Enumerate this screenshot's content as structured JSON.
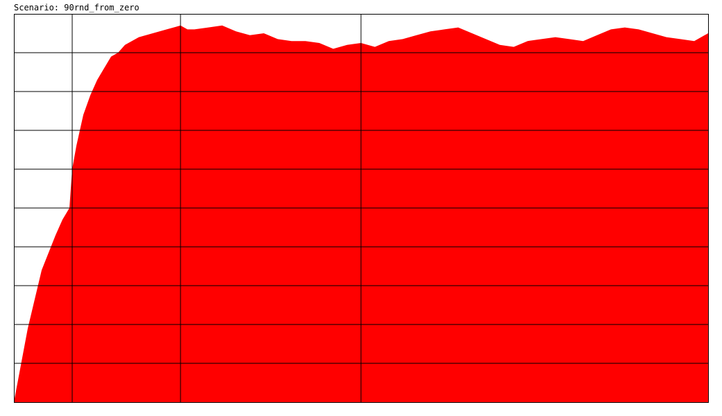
{
  "header": {
    "title": "Scenario: 90rnd_from_zero"
  },
  "chart_data": {
    "type": "area",
    "title": "Scenario: 90rnd_from_zero",
    "xlabel": "",
    "ylabel": "",
    "xlim": [
      0,
      1000
    ],
    "ylim": [
      0,
      1
    ],
    "grid": true,
    "y_gridlines": [
      0.1,
      0.2,
      0.3,
      0.4,
      0.5,
      0.6,
      0.7,
      0.8,
      0.9
    ],
    "x_gridlines": [
      84,
      240,
      500
    ],
    "fill_color": "#ff0000",
    "series": [
      {
        "x": [
          0,
          20,
          40,
          60,
          70,
          80,
          84,
          90,
          100,
          110,
          120,
          130,
          140,
          150,
          160,
          180,
          200,
          220,
          240,
          250,
          260,
          280,
          300,
          320,
          340,
          360,
          380,
          400,
          420,
          440,
          460,
          480,
          500,
          520,
          540,
          560,
          580,
          600,
          620,
          640,
          660,
          680,
          700,
          720,
          740,
          760,
          780,
          800,
          820,
          840,
          860,
          880,
          900,
          920,
          940,
          960,
          980,
          1000
        ],
        "values": [
          0.0,
          0.19,
          0.34,
          0.43,
          0.47,
          0.5,
          0.6,
          0.66,
          0.74,
          0.79,
          0.83,
          0.86,
          0.89,
          0.9,
          0.92,
          0.94,
          0.95,
          0.96,
          0.97,
          0.96,
          0.96,
          0.965,
          0.97,
          0.955,
          0.945,
          0.95,
          0.935,
          0.93,
          0.93,
          0.925,
          0.91,
          0.92,
          0.925,
          0.915,
          0.93,
          0.935,
          0.945,
          0.955,
          0.96,
          0.965,
          0.95,
          0.935,
          0.92,
          0.915,
          0.93,
          0.935,
          0.94,
          0.935,
          0.93,
          0.945,
          0.96,
          0.965,
          0.96,
          0.95,
          0.94,
          0.935,
          0.93,
          0.95
        ]
      }
    ]
  }
}
